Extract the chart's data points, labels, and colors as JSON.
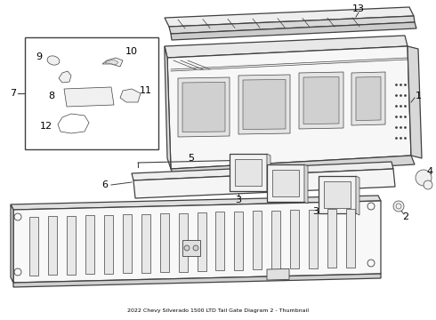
{
  "title": "2022 Chevy Silverado 1500 LTD Tail Gate Diagram 2 - Thumbnail",
  "bg_color": "#ffffff",
  "line_color": "#404040",
  "label_color": "#000000",
  "figsize": [
    4.9,
    3.6
  ],
  "dpi": 100
}
